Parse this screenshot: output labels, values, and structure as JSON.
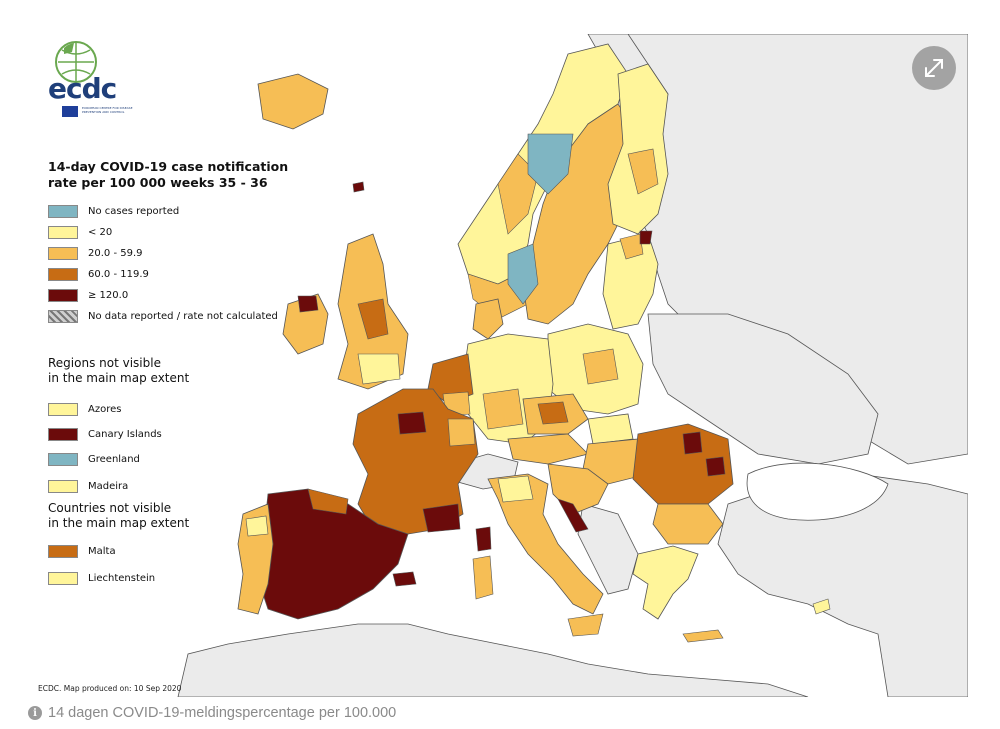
{
  "map": {
    "title_line1": "14-day COVID-19 case notification",
    "title_line2": "rate per 100 000 weeks 35 - 36",
    "legend": [
      {
        "label": "No cases reported",
        "color": "#7fb5c2"
      },
      {
        "label": "< 20",
        "color": "#fff59a"
      },
      {
        "label": "20.0 - 59.9",
        "color": "#f6be55"
      },
      {
        "label": "60.0 - 119.9",
        "color": "#c76c14"
      },
      {
        "label": "≥ 120.0",
        "color": "#6b0b0b"
      },
      {
        "label": "No data reported / rate not calculated",
        "color": "hatched"
      }
    ],
    "regions_heading_line1": "Regions not visible",
    "regions_heading_line2": "in the main map extent",
    "regions": [
      {
        "label": "Azores",
        "color": "#fff59a"
      },
      {
        "label": "Canary Islands",
        "color": "#6b0b0b"
      },
      {
        "label": "Greenland",
        "color": "#7fb5c2"
      },
      {
        "label": "Madeira",
        "color": "#fff59a"
      }
    ],
    "countries_heading_line1": "Countries not visible",
    "countries_heading_line2": "in the main map extent",
    "countries": [
      {
        "label": "Malta",
        "color": "#c76c14"
      },
      {
        "label": "Liechtenstein",
        "color": "#fff59a"
      }
    ],
    "footer": "ECDC. Map produced on: 10 Sep 2020",
    "logo_text": "ecdc",
    "logo_subtext": "EUROPEAN CENTRE FOR DISEASE PREVENTION AND CONTROL",
    "colors": {
      "background_land": "#d9d9d9",
      "sea": "#ffffff",
      "non_eu": "#ebebeb"
    }
  },
  "caption": {
    "text": "14 dagen COVID-19-meldingspercentage per 100.000",
    "icon": "info-icon"
  },
  "expand_button": {
    "icon": "expand-icon"
  }
}
